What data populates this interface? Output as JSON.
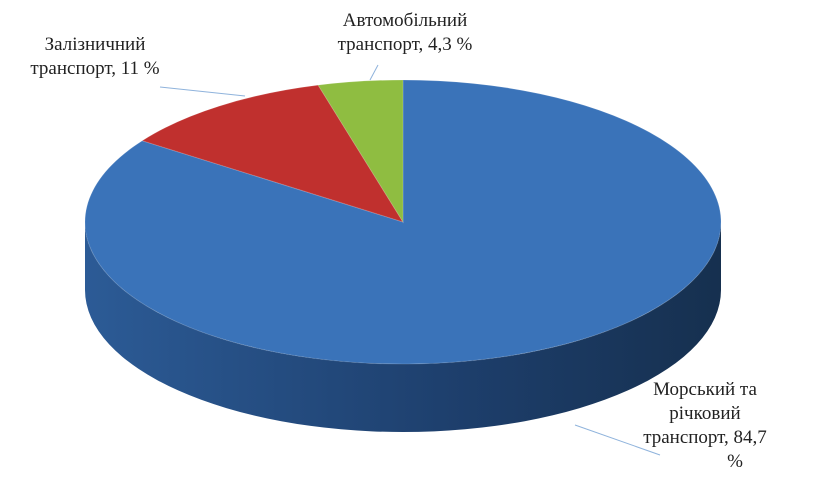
{
  "chart_data": {
    "type": "pie",
    "values": [
      84.7,
      11,
      4.3
    ],
    "value_labels": [
      [
        "Морський та",
        "річковий",
        "транспорт, 84,7",
        "%"
      ],
      [
        "Залізничний",
        "транспорт, 11 %"
      ],
      [
        "Автомобільний",
        "транспорт, 4,3 %"
      ]
    ],
    "colors": [
      "#3a73b9",
      "#c0302e",
      "#8fbd41"
    ]
  }
}
